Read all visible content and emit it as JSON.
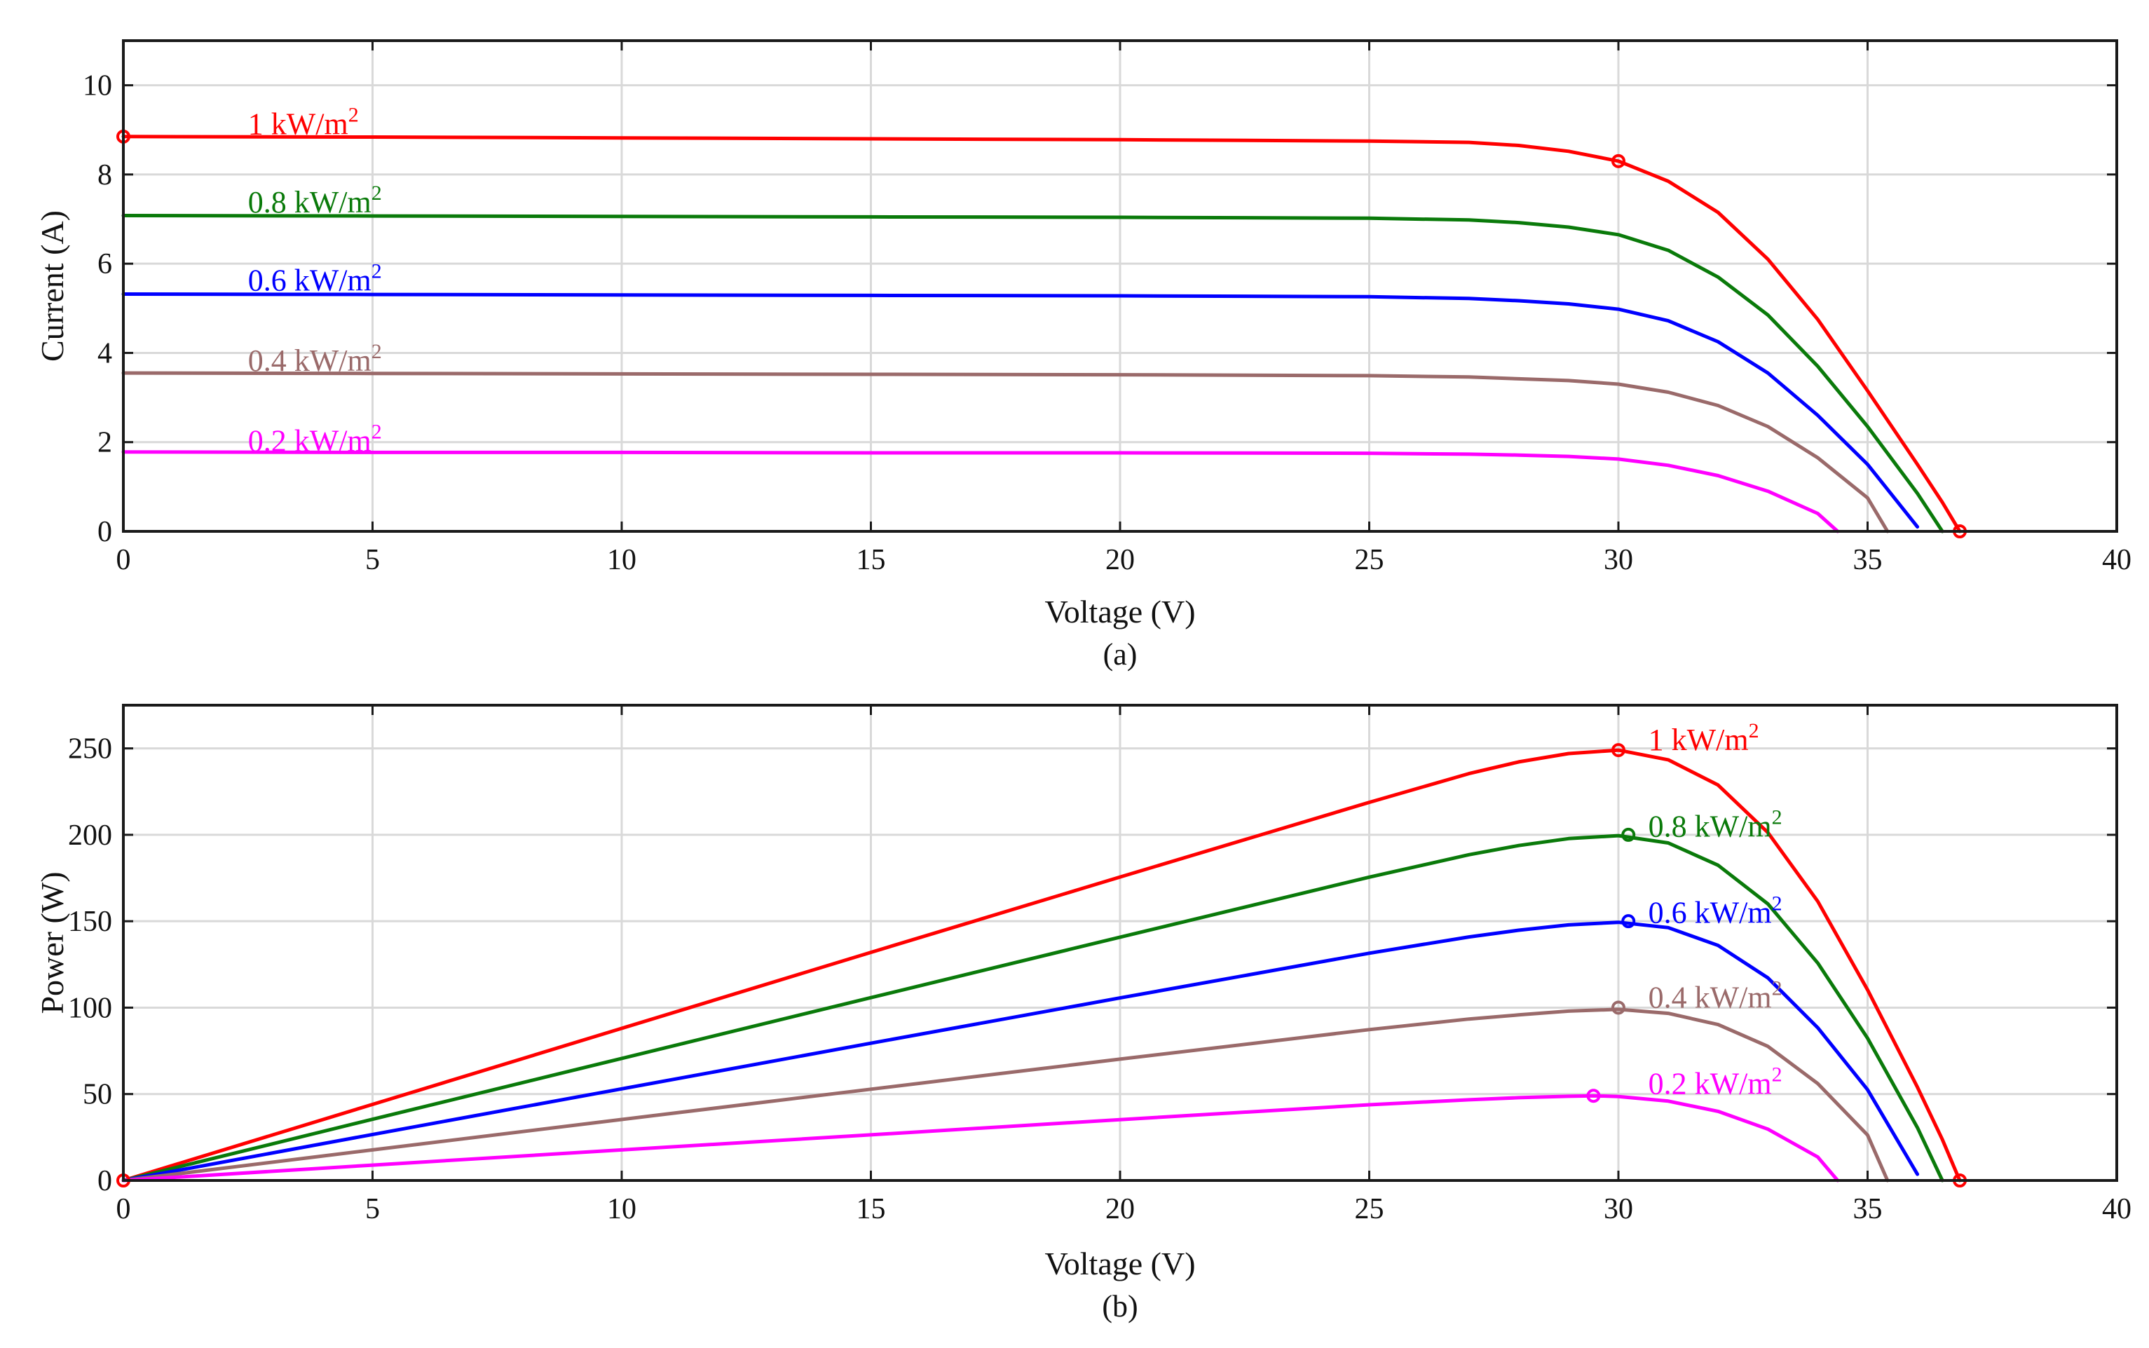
{
  "chart_data": [
    {
      "id": "a",
      "type": "line",
      "caption": "(a)",
      "xlabel": "Voltage (V)",
      "ylabel": "Current (A)",
      "xlim": [
        0,
        40
      ],
      "ylim": [
        0,
        11
      ],
      "xticks": [
        0,
        5,
        10,
        15,
        20,
        25,
        30,
        35,
        40
      ],
      "yticks": [
        0,
        2,
        4,
        6,
        8,
        10
      ],
      "grid": true,
      "series": [
        {
          "name": "1 kW/m2",
          "label_main": "1 kW/m",
          "label_sup": "2",
          "color": "#ff0000",
          "label_at": [
            2.5,
            8.9
          ],
          "points": [
            [
              0,
              8.85
            ],
            [
              5,
              8.84
            ],
            [
              10,
              8.82
            ],
            [
              15,
              8.8
            ],
            [
              20,
              8.78
            ],
            [
              25,
              8.75
            ],
            [
              27,
              8.72
            ],
            [
              28,
              8.65
            ],
            [
              29,
              8.52
            ],
            [
              30,
              8.3
            ],
            [
              31,
              7.85
            ],
            [
              32,
              7.15
            ],
            [
              33,
              6.1
            ],
            [
              34,
              4.75
            ],
            [
              35,
              3.15
            ],
            [
              36,
              1.5
            ],
            [
              36.5,
              0.65
            ],
            [
              36.85,
              0
            ]
          ],
          "markers": [
            [
              0,
              8.85
            ],
            [
              30,
              8.3
            ],
            [
              36.85,
              0
            ]
          ]
        },
        {
          "name": "0.8 kW/m2",
          "label_main": "0.8 kW/m",
          "label_sup": "2",
          "color": "#0a7a0a",
          "label_at": [
            2.5,
            7.15
          ],
          "points": [
            [
              0,
              7.08
            ],
            [
              5,
              7.07
            ],
            [
              10,
              7.06
            ],
            [
              15,
              7.05
            ],
            [
              20,
              7.04
            ],
            [
              25,
              7.02
            ],
            [
              27,
              6.98
            ],
            [
              28,
              6.92
            ],
            [
              29,
              6.82
            ],
            [
              30,
              6.65
            ],
            [
              31,
              6.3
            ],
            [
              32,
              5.7
            ],
            [
              33,
              4.85
            ],
            [
              34,
              3.7
            ],
            [
              35,
              2.35
            ],
            [
              36,
              0.85
            ],
            [
              36.5,
              0
            ]
          ],
          "markers": []
        },
        {
          "name": "0.6 kW/m2",
          "label_main": "0.6 kW/m",
          "label_sup": "2",
          "color": "#0000ff",
          "label_at": [
            2.5,
            5.4
          ],
          "points": [
            [
              0,
              5.32
            ],
            [
              5,
              5.31
            ],
            [
              10,
              5.3
            ],
            [
              15,
              5.29
            ],
            [
              20,
              5.28
            ],
            [
              25,
              5.26
            ],
            [
              27,
              5.22
            ],
            [
              28,
              5.17
            ],
            [
              29,
              5.1
            ],
            [
              30,
              4.98
            ],
            [
              31,
              4.72
            ],
            [
              32,
              4.25
            ],
            [
              33,
              3.55
            ],
            [
              34,
              2.6
            ],
            [
              35,
              1.5
            ],
            [
              36,
              0.1
            ]
          ],
          "markers": []
        },
        {
          "name": "0.4 kW/m2",
          "label_main": "0.4 kW/m",
          "label_sup": "2",
          "color": "#9a6a6a",
          "label_at": [
            2.5,
            3.6
          ],
          "points": [
            [
              0,
              3.55
            ],
            [
              5,
              3.54
            ],
            [
              10,
              3.53
            ],
            [
              15,
              3.52
            ],
            [
              20,
              3.51
            ],
            [
              25,
              3.49
            ],
            [
              27,
              3.46
            ],
            [
              28,
              3.42
            ],
            [
              29,
              3.38
            ],
            [
              30,
              3.3
            ],
            [
              31,
              3.12
            ],
            [
              32,
              2.82
            ],
            [
              33,
              2.35
            ],
            [
              34,
              1.65
            ],
            [
              35,
              0.75
            ],
            [
              35.4,
              0
            ]
          ],
          "markers": []
        },
        {
          "name": "0.2 kW/m2",
          "label_main": "0.2 kW/m",
          "label_sup": "2",
          "color": "#ff00ff",
          "label_at": [
            2.5,
            1.8
          ],
          "points": [
            [
              0,
              1.78
            ],
            [
              5,
              1.77
            ],
            [
              10,
              1.77
            ],
            [
              15,
              1.76
            ],
            [
              20,
              1.76
            ],
            [
              25,
              1.75
            ],
            [
              27,
              1.73
            ],
            [
              28,
              1.71
            ],
            [
              29,
              1.68
            ],
            [
              30,
              1.62
            ],
            [
              31,
              1.48
            ],
            [
              32,
              1.25
            ],
            [
              33,
              0.9
            ],
            [
              34,
              0.4
            ],
            [
              34.4,
              0
            ]
          ],
          "markers": []
        }
      ]
    },
    {
      "id": "b",
      "type": "line",
      "caption": "(b)",
      "xlabel": "Voltage (V)",
      "ylabel": "Power (W)",
      "xlim": [
        0,
        40
      ],
      "ylim": [
        0,
        275
      ],
      "xticks": [
        0,
        5,
        10,
        15,
        20,
        25,
        30,
        35,
        40
      ],
      "yticks": [
        0,
        50,
        100,
        150,
        200,
        250
      ],
      "grid": true,
      "series": [
        {
          "name": "1 kW/m2",
          "label_main": "1 kW/m",
          "label_sup": "2",
          "color": "#ff0000",
          "label_at": [
            30.6,
            249
          ],
          "points": [
            [
              0,
              0
            ],
            [
              5,
              44
            ],
            [
              10,
              88
            ],
            [
              15,
              132
            ],
            [
              20,
              175.6
            ],
            [
              25,
              218.8
            ],
            [
              27,
              235.4
            ],
            [
              28,
              242.2
            ],
            [
              29,
              247
            ],
            [
              30,
              249
            ],
            [
              31,
              243.4
            ],
            [
              32,
              228.8
            ],
            [
              33,
              201.3
            ],
            [
              34,
              161.5
            ],
            [
              35,
              110.3
            ],
            [
              36,
              54
            ],
            [
              36.5,
              23.7
            ],
            [
              36.85,
              0
            ]
          ],
          "markers": [
            [
              0,
              0
            ],
            [
              30,
              249
            ],
            [
              36.85,
              0
            ]
          ]
        },
        {
          "name": "0.8 kW/m2",
          "label_main": "0.8 kW/m",
          "label_sup": "2",
          "color": "#0a7a0a",
          "label_at": [
            30.6,
            199
          ],
          "points": [
            [
              0,
              0
            ],
            [
              5,
              35.4
            ],
            [
              10,
              70.6
            ],
            [
              15,
              105.8
            ],
            [
              20,
              140.8
            ],
            [
              25,
              175.5
            ],
            [
              27,
              188.5
            ],
            [
              28,
              193.8
            ],
            [
              29,
              197.8
            ],
            [
              30,
              199.5
            ],
            [
              31,
              195.3
            ],
            [
              32,
              182.4
            ],
            [
              33,
              160
            ],
            [
              34,
              125.8
            ],
            [
              35,
              82.3
            ],
            [
              36,
              30.6
            ],
            [
              36.5,
              0
            ]
          ],
          "markers": [
            [
              30.2,
              200
            ]
          ]
        },
        {
          "name": "0.6 kW/m2",
          "label_main": "0.6 kW/m",
          "label_sup": "2",
          "color": "#0000ff",
          "label_at": [
            30.6,
            149
          ],
          "points": [
            [
              0,
              0
            ],
            [
              5,
              26.6
            ],
            [
              10,
              53
            ],
            [
              15,
              79.4
            ],
            [
              20,
              105.6
            ],
            [
              25,
              131.5
            ],
            [
              27,
              140.9
            ],
            [
              28,
              144.8
            ],
            [
              29,
              147.9
            ],
            [
              30,
              149.4
            ],
            [
              31,
              146.3
            ],
            [
              32,
              136
            ],
            [
              33,
              117.2
            ],
            [
              34,
              88.4
            ],
            [
              35,
              52.5
            ],
            [
              36,
              3.6
            ]
          ],
          "markers": [
            [
              30.2,
              150
            ]
          ]
        },
        {
          "name": "0.4 kW/m2",
          "label_main": "0.4 kW/m",
          "label_sup": "2",
          "color": "#9a6a6a",
          "label_at": [
            30.6,
            100
          ],
          "points": [
            [
              0,
              0
            ],
            [
              5,
              17.7
            ],
            [
              10,
              35.3
            ],
            [
              15,
              52.8
            ],
            [
              20,
              70.2
            ],
            [
              25,
              87.3
            ],
            [
              27,
              93.4
            ],
            [
              28,
              95.8
            ],
            [
              29,
              98
            ],
            [
              30,
              99
            ],
            [
              31,
              96.7
            ],
            [
              32,
              90.2
            ],
            [
              33,
              77.6
            ],
            [
              34,
              56.1
            ],
            [
              35,
              26.3
            ],
            [
              35.4,
              0
            ]
          ],
          "markers": [
            [
              30,
              100
            ]
          ]
        },
        {
          "name": "0.2 kW/m2",
          "label_main": "0.2 kW/m",
          "label_sup": "2",
          "color": "#ff00ff",
          "label_at": [
            30.6,
            50
          ],
          "points": [
            [
              0,
              0
            ],
            [
              5,
              8.9
            ],
            [
              10,
              17.7
            ],
            [
              15,
              26.4
            ],
            [
              20,
              35.2
            ],
            [
              25,
              43.8
            ],
            [
              27,
              46.7
            ],
            [
              28,
              47.9
            ],
            [
              29,
              48.7
            ],
            [
              29.5,
              49
            ],
            [
              30,
              48.6
            ],
            [
              31,
              45.9
            ],
            [
              32,
              40
            ],
            [
              33,
              29.7
            ],
            [
              34,
              13.6
            ],
            [
              34.4,
              0
            ]
          ],
          "markers": [
            [
              29.5,
              49
            ]
          ]
        }
      ]
    }
  ]
}
